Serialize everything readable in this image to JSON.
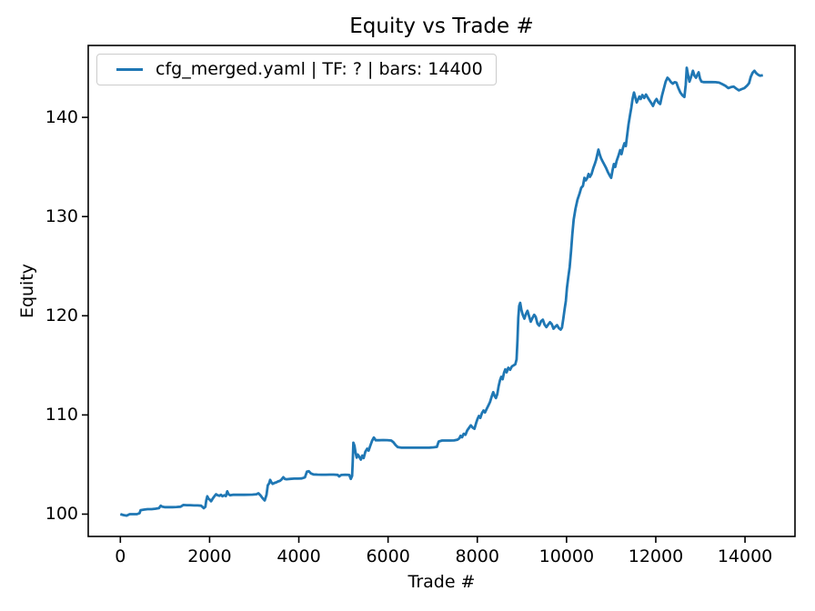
{
  "chart_data": {
    "type": "line",
    "title": "Equity vs Trade #",
    "xlabel": "Trade #",
    "ylabel": "Equity",
    "xlim": [
      -720,
      15120
    ],
    "ylim": [
      97.75,
      147.25
    ],
    "x_ticks": [
      0,
      2000,
      4000,
      6000,
      8000,
      10000,
      12000,
      14000
    ],
    "y_ticks": [
      100,
      110,
      120,
      130,
      140
    ],
    "grid": false,
    "legend_position": "upper left",
    "frame_color": "#000000",
    "series": [
      {
        "name": "cfg_merged.yaml | TF: ? | bars: 14400",
        "color": "#1f77b4",
        "points": [
          [
            0,
            100.0
          ],
          [
            70,
            99.9
          ],
          [
            140,
            99.85
          ],
          [
            210,
            100.0
          ],
          [
            290,
            100.0
          ],
          [
            370,
            100.0
          ],
          [
            430,
            100.1
          ],
          [
            455,
            100.4
          ],
          [
            530,
            100.45
          ],
          [
            610,
            100.5
          ],
          [
            700,
            100.5
          ],
          [
            790,
            100.55
          ],
          [
            865,
            100.6
          ],
          [
            905,
            100.85
          ],
          [
            940,
            100.75
          ],
          [
            990,
            100.7
          ],
          [
            1080,
            100.7
          ],
          [
            1170,
            100.7
          ],
          [
            1260,
            100.72
          ],
          [
            1350,
            100.75
          ],
          [
            1410,
            100.92
          ],
          [
            1490,
            100.9
          ],
          [
            1570,
            100.9
          ],
          [
            1650,
            100.88
          ],
          [
            1730,
            100.88
          ],
          [
            1810,
            100.85
          ],
          [
            1872,
            100.6
          ],
          [
            1905,
            100.75
          ],
          [
            1925,
            101.35
          ],
          [
            1948,
            101.8
          ],
          [
            1975,
            101.55
          ],
          [
            2005,
            101.45
          ],
          [
            2035,
            101.3
          ],
          [
            2075,
            101.6
          ],
          [
            2115,
            101.85
          ],
          [
            2145,
            102.0
          ],
          [
            2180,
            101.9
          ],
          [
            2220,
            101.85
          ],
          [
            2255,
            101.95
          ],
          [
            2290,
            101.8
          ],
          [
            2330,
            101.9
          ],
          [
            2365,
            101.82
          ],
          [
            2395,
            102.3
          ],
          [
            2425,
            102.0
          ],
          [
            2460,
            101.9
          ],
          [
            2520,
            101.95
          ],
          [
            2600,
            101.95
          ],
          [
            2690,
            101.95
          ],
          [
            2780,
            101.95
          ],
          [
            2870,
            101.96
          ],
          [
            2960,
            101.97
          ],
          [
            3050,
            102.0
          ],
          [
            3095,
            102.1
          ],
          [
            3140,
            101.9
          ],
          [
            3185,
            101.62
          ],
          [
            3235,
            101.38
          ],
          [
            3275,
            101.95
          ],
          [
            3305,
            102.9
          ],
          [
            3335,
            103.1
          ],
          [
            3358,
            103.45
          ],
          [
            3385,
            103.2
          ],
          [
            3415,
            103.05
          ],
          [
            3455,
            103.15
          ],
          [
            3495,
            103.2
          ],
          [
            3535,
            103.3
          ],
          [
            3575,
            103.35
          ],
          [
            3615,
            103.5
          ],
          [
            3652,
            103.72
          ],
          [
            3685,
            103.55
          ],
          [
            3725,
            103.52
          ],
          [
            3810,
            103.55
          ],
          [
            3895,
            103.58
          ],
          [
            3980,
            103.58
          ],
          [
            4065,
            103.6
          ],
          [
            4135,
            103.7
          ],
          [
            4180,
            104.28
          ],
          [
            4225,
            104.32
          ],
          [
            4270,
            104.1
          ],
          [
            4330,
            104.0
          ],
          [
            4420,
            103.98
          ],
          [
            4510,
            103.97
          ],
          [
            4600,
            103.97
          ],
          [
            4690,
            103.98
          ],
          [
            4780,
            103.98
          ],
          [
            4870,
            103.96
          ],
          [
            4905,
            103.8
          ],
          [
            4950,
            103.95
          ],
          [
            5040,
            103.97
          ],
          [
            5130,
            103.95
          ],
          [
            5165,
            103.55
          ],
          [
            5195,
            103.85
          ],
          [
            5208,
            105.3
          ],
          [
            5222,
            107.2
          ],
          [
            5248,
            106.9
          ],
          [
            5272,
            106.2
          ],
          [
            5298,
            105.7
          ],
          [
            5322,
            106.0
          ],
          [
            5352,
            105.8
          ],
          [
            5390,
            105.5
          ],
          [
            5422,
            105.9
          ],
          [
            5452,
            105.65
          ],
          [
            5492,
            106.3
          ],
          [
            5532,
            106.6
          ],
          [
            5562,
            106.4
          ],
          [
            5602,
            106.9
          ],
          [
            5642,
            107.4
          ],
          [
            5682,
            107.72
          ],
          [
            5722,
            107.45
          ],
          [
            5800,
            107.45
          ],
          [
            5890,
            107.47
          ],
          [
            5980,
            107.46
          ],
          [
            6070,
            107.42
          ],
          [
            6120,
            107.25
          ],
          [
            6170,
            106.95
          ],
          [
            6220,
            106.75
          ],
          [
            6300,
            106.7
          ],
          [
            6390,
            106.7
          ],
          [
            6480,
            106.7
          ],
          [
            6570,
            106.7
          ],
          [
            6660,
            106.7
          ],
          [
            6750,
            106.7
          ],
          [
            6840,
            106.7
          ],
          [
            6930,
            106.71
          ],
          [
            7020,
            106.73
          ],
          [
            7095,
            106.78
          ],
          [
            7135,
            107.32
          ],
          [
            7210,
            107.42
          ],
          [
            7300,
            107.42
          ],
          [
            7390,
            107.42
          ],
          [
            7480,
            107.43
          ],
          [
            7555,
            107.5
          ],
          [
            7600,
            107.65
          ],
          [
            7625,
            107.9
          ],
          [
            7658,
            107.75
          ],
          [
            7695,
            108.1
          ],
          [
            7735,
            108.0
          ],
          [
            7775,
            108.45
          ],
          [
            7815,
            108.7
          ],
          [
            7855,
            108.95
          ],
          [
            7895,
            108.72
          ],
          [
            7935,
            108.6
          ],
          [
            7975,
            109.2
          ],
          [
            8005,
            109.6
          ],
          [
            8035,
            109.9
          ],
          [
            8068,
            109.7
          ],
          [
            8105,
            110.2
          ],
          [
            8140,
            110.45
          ],
          [
            8172,
            110.25
          ],
          [
            8210,
            110.6
          ],
          [
            8248,
            110.95
          ],
          [
            8285,
            111.3
          ],
          [
            8325,
            111.9
          ],
          [
            8358,
            112.3
          ],
          [
            8388,
            111.9
          ],
          [
            8418,
            111.7
          ],
          [
            8448,
            112.1
          ],
          [
            8478,
            112.9
          ],
          [
            8508,
            113.5
          ],
          [
            8538,
            113.85
          ],
          [
            8568,
            113.6
          ],
          [
            8598,
            114.25
          ],
          [
            8628,
            114.6
          ],
          [
            8658,
            114.3
          ],
          [
            8695,
            114.75
          ],
          [
            8735,
            114.55
          ],
          [
            8775,
            114.9
          ],
          [
            8815,
            115.0
          ],
          [
            8852,
            115.1
          ],
          [
            8880,
            115.6
          ],
          [
            8900,
            117.5
          ],
          [
            8918,
            119.8
          ],
          [
            8938,
            121.0
          ],
          [
            8962,
            121.3
          ],
          [
            8988,
            120.6
          ],
          [
            9018,
            120.1
          ],
          [
            9055,
            119.7
          ],
          [
            9088,
            120.15
          ],
          [
            9125,
            120.5
          ],
          [
            9158,
            120.0
          ],
          [
            9198,
            119.4
          ],
          [
            9238,
            119.8
          ],
          [
            9275,
            120.1
          ],
          [
            9308,
            119.9
          ],
          [
            9348,
            119.2
          ],
          [
            9388,
            119.0
          ],
          [
            9428,
            119.45
          ],
          [
            9468,
            119.6
          ],
          [
            9508,
            119.1
          ],
          [
            9548,
            118.85
          ],
          [
            9588,
            119.1
          ],
          [
            9628,
            119.35
          ],
          [
            9668,
            119.15
          ],
          [
            9708,
            118.7
          ],
          [
            9748,
            118.9
          ],
          [
            9788,
            119.05
          ],
          [
            9828,
            118.75
          ],
          [
            9868,
            118.6
          ],
          [
            9898,
            118.8
          ],
          [
            9928,
            119.7
          ],
          [
            9958,
            120.7
          ],
          [
            9985,
            121.5
          ],
          [
            10010,
            122.8
          ],
          [
            10040,
            123.9
          ],
          [
            10070,
            124.9
          ],
          [
            10100,
            126.5
          ],
          [
            10130,
            128.2
          ],
          [
            10160,
            129.7
          ],
          [
            10200,
            130.8
          ],
          [
            10245,
            131.7
          ],
          [
            10290,
            132.3
          ],
          [
            10330,
            132.9
          ],
          [
            10368,
            133.1
          ],
          [
            10400,
            133.9
          ],
          [
            10432,
            133.65
          ],
          [
            10465,
            133.9
          ],
          [
            10495,
            134.3
          ],
          [
            10525,
            134.0
          ],
          [
            10562,
            134.3
          ],
          [
            10600,
            134.9
          ],
          [
            10632,
            135.3
          ],
          [
            10662,
            135.7
          ],
          [
            10692,
            136.3
          ],
          [
            10715,
            136.75
          ],
          [
            10742,
            136.3
          ],
          [
            10772,
            135.9
          ],
          [
            10805,
            135.6
          ],
          [
            10845,
            135.25
          ],
          [
            10885,
            134.9
          ],
          [
            10925,
            134.5
          ],
          [
            10965,
            134.15
          ],
          [
            11000,
            133.9
          ],
          [
            11032,
            134.7
          ],
          [
            11062,
            135.3
          ],
          [
            11092,
            135.0
          ],
          [
            11122,
            135.6
          ],
          [
            11162,
            136.1
          ],
          [
            11202,
            136.7
          ],
          [
            11232,
            136.3
          ],
          [
            11262,
            136.9
          ],
          [
            11298,
            137.4
          ],
          [
            11328,
            137.1
          ],
          [
            11358,
            138.2
          ],
          [
            11390,
            139.3
          ],
          [
            11422,
            140.2
          ],
          [
            11452,
            141.0
          ],
          [
            11482,
            141.9
          ],
          [
            11512,
            142.5
          ],
          [
            11542,
            142.0
          ],
          [
            11572,
            141.5
          ],
          [
            11602,
            141.8
          ],
          [
            11632,
            142.1
          ],
          [
            11662,
            141.85
          ],
          [
            11700,
            142.25
          ],
          [
            11740,
            141.95
          ],
          [
            11780,
            142.3
          ],
          [
            11820,
            142.0
          ],
          [
            11860,
            141.7
          ],
          [
            11900,
            141.45
          ],
          [
            11938,
            141.15
          ],
          [
            11978,
            141.6
          ],
          [
            12018,
            141.85
          ],
          [
            12058,
            141.5
          ],
          [
            12098,
            141.35
          ],
          [
            12140,
            142.2
          ],
          [
            12180,
            142.9
          ],
          [
            12222,
            143.6
          ],
          [
            12262,
            144.0
          ],
          [
            12302,
            143.8
          ],
          [
            12342,
            143.55
          ],
          [
            12382,
            143.4
          ],
          [
            12422,
            143.55
          ],
          [
            12462,
            143.5
          ],
          [
            12502,
            143.0
          ],
          [
            12552,
            142.5
          ],
          [
            12602,
            142.2
          ],
          [
            12642,
            142.05
          ],
          [
            12672,
            143.3
          ],
          [
            12695,
            145.0
          ],
          [
            12722,
            144.3
          ],
          [
            12755,
            143.6
          ],
          [
            12792,
            144.1
          ],
          [
            12832,
            144.7
          ],
          [
            12868,
            144.2
          ],
          [
            12902,
            144.0
          ],
          [
            12932,
            144.3
          ],
          [
            12962,
            144.55
          ],
          [
            12992,
            143.9
          ],
          [
            13025,
            143.6
          ],
          [
            13070,
            143.56
          ],
          [
            13160,
            143.56
          ],
          [
            13250,
            143.56
          ],
          [
            13340,
            143.55
          ],
          [
            13420,
            143.5
          ],
          [
            13490,
            143.35
          ],
          [
            13560,
            143.18
          ],
          [
            13625,
            142.95
          ],
          [
            13685,
            143.05
          ],
          [
            13745,
            143.1
          ],
          [
            13805,
            142.9
          ],
          [
            13865,
            142.72
          ],
          [
            13925,
            142.85
          ],
          [
            13985,
            142.95
          ],
          [
            14045,
            143.2
          ],
          [
            14090,
            143.45
          ],
          [
            14130,
            144.1
          ],
          [
            14170,
            144.5
          ],
          [
            14210,
            144.7
          ],
          [
            14252,
            144.45
          ],
          [
            14295,
            144.3
          ],
          [
            14338,
            144.2
          ],
          [
            14400,
            144.25
          ]
        ]
      }
    ]
  }
}
